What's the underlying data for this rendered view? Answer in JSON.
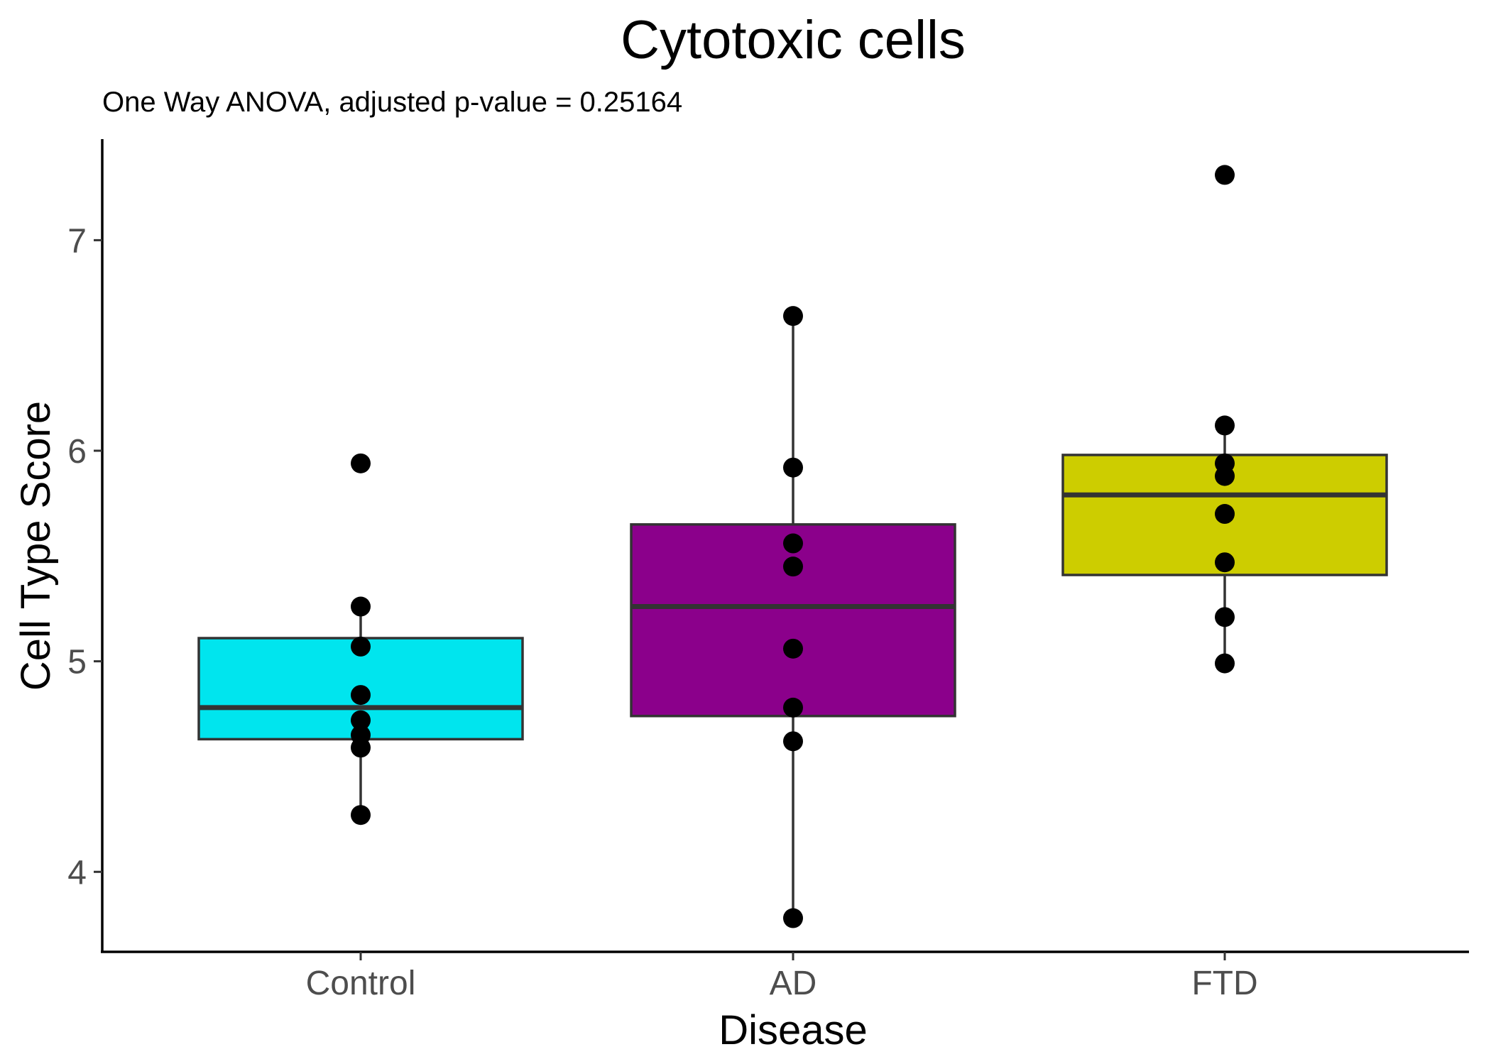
{
  "chart_data": {
    "type": "box",
    "title": "Cytotoxic cells",
    "subtitle": "One Way ANOVA, adjusted p-value = 0.25164",
    "xlabel": "Disease",
    "ylabel": "Cell Type Score",
    "ylim": [
      3.62,
      7.48
    ],
    "yticks": [
      4,
      5,
      6,
      7
    ],
    "ytick_labels": [
      "4",
      "5",
      "6",
      "7"
    ],
    "grid": false,
    "legend": "none",
    "categories": [
      "Control",
      "AD",
      "FTD"
    ],
    "groups": [
      {
        "category": "Control",
        "color": "#00E5EE",
        "q1": 4.63,
        "median": 4.78,
        "q3": 5.11,
        "whisker_low": 4.27,
        "whisker_high": 5.26,
        "points": [
          5.94,
          5.26,
          5.07,
          4.84,
          4.72,
          4.65,
          4.59,
          4.27
        ]
      },
      {
        "category": "AD",
        "color": "#8B008B",
        "q1": 4.74,
        "median": 5.26,
        "q3": 5.65,
        "whisker_low": 3.78,
        "whisker_high": 6.64,
        "points": [
          6.64,
          5.92,
          5.56,
          5.45,
          5.06,
          4.78,
          4.62,
          3.78
        ]
      },
      {
        "category": "FTD",
        "color": "#CDCD00",
        "q1": 5.41,
        "median": 5.79,
        "q3": 5.98,
        "whisker_low": 4.99,
        "whisker_high": 6.12,
        "points": [
          7.31,
          6.12,
          5.94,
          5.88,
          5.7,
          5.47,
          5.21,
          4.99
        ]
      }
    ]
  }
}
